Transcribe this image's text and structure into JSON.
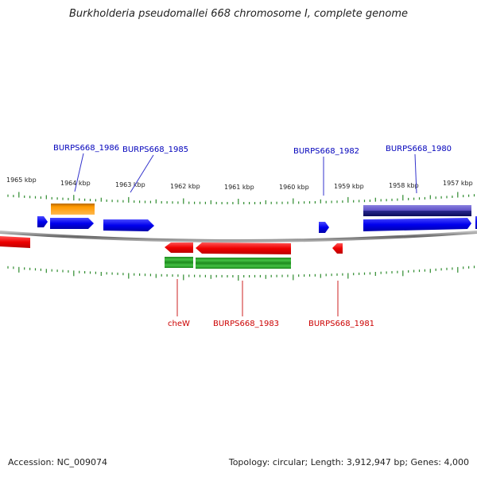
{
  "title": "Burkholderia pseudomallei 668 chromosome I, complete genome",
  "footer": {
    "accession": "Accession: NC_009074",
    "summary": "Topology: circular; Length: 3,912,947 bp; Genes: 4,000"
  },
  "colors": {
    "forward_cds": "#1a1aff",
    "reverse_cds": "#ff1a1a",
    "orange_feature": "#ff9900",
    "purple_feature": "#6b5fd0",
    "green_feature": "#2ea02e",
    "tick": "#2e8b2e",
    "backbone": "#888888",
    "forward_label": "#0000bb",
    "reverse_label": "#cc0000"
  },
  "scale": {
    "unit": "kbp",
    "ticks": [
      {
        "kbp": 1965,
        "label": "1965 kbp"
      },
      {
        "kbp": 1964,
        "label": "1964 kbp"
      },
      {
        "kbp": 1963,
        "label": "1963 kbp"
      },
      {
        "kbp": 1962,
        "label": "1962 kbp"
      },
      {
        "kbp": 1961,
        "label": "1961 kbp"
      },
      {
        "kbp": 1960,
        "label": "1960 kbp"
      },
      {
        "kbp": 1959,
        "label": "1959 kbp"
      },
      {
        "kbp": 1958,
        "label": "1958 kbp"
      },
      {
        "kbp": 1957,
        "label": "1957 kbp"
      }
    ]
  },
  "genes": {
    "forward": [
      "BURPS668_1986",
      "BURPS668_1985",
      "BURPS668_1982",
      "BURPS668_1980"
    ],
    "reverse": [
      "cheW",
      "BURPS668_1983",
      "BURPS668_1981"
    ]
  }
}
